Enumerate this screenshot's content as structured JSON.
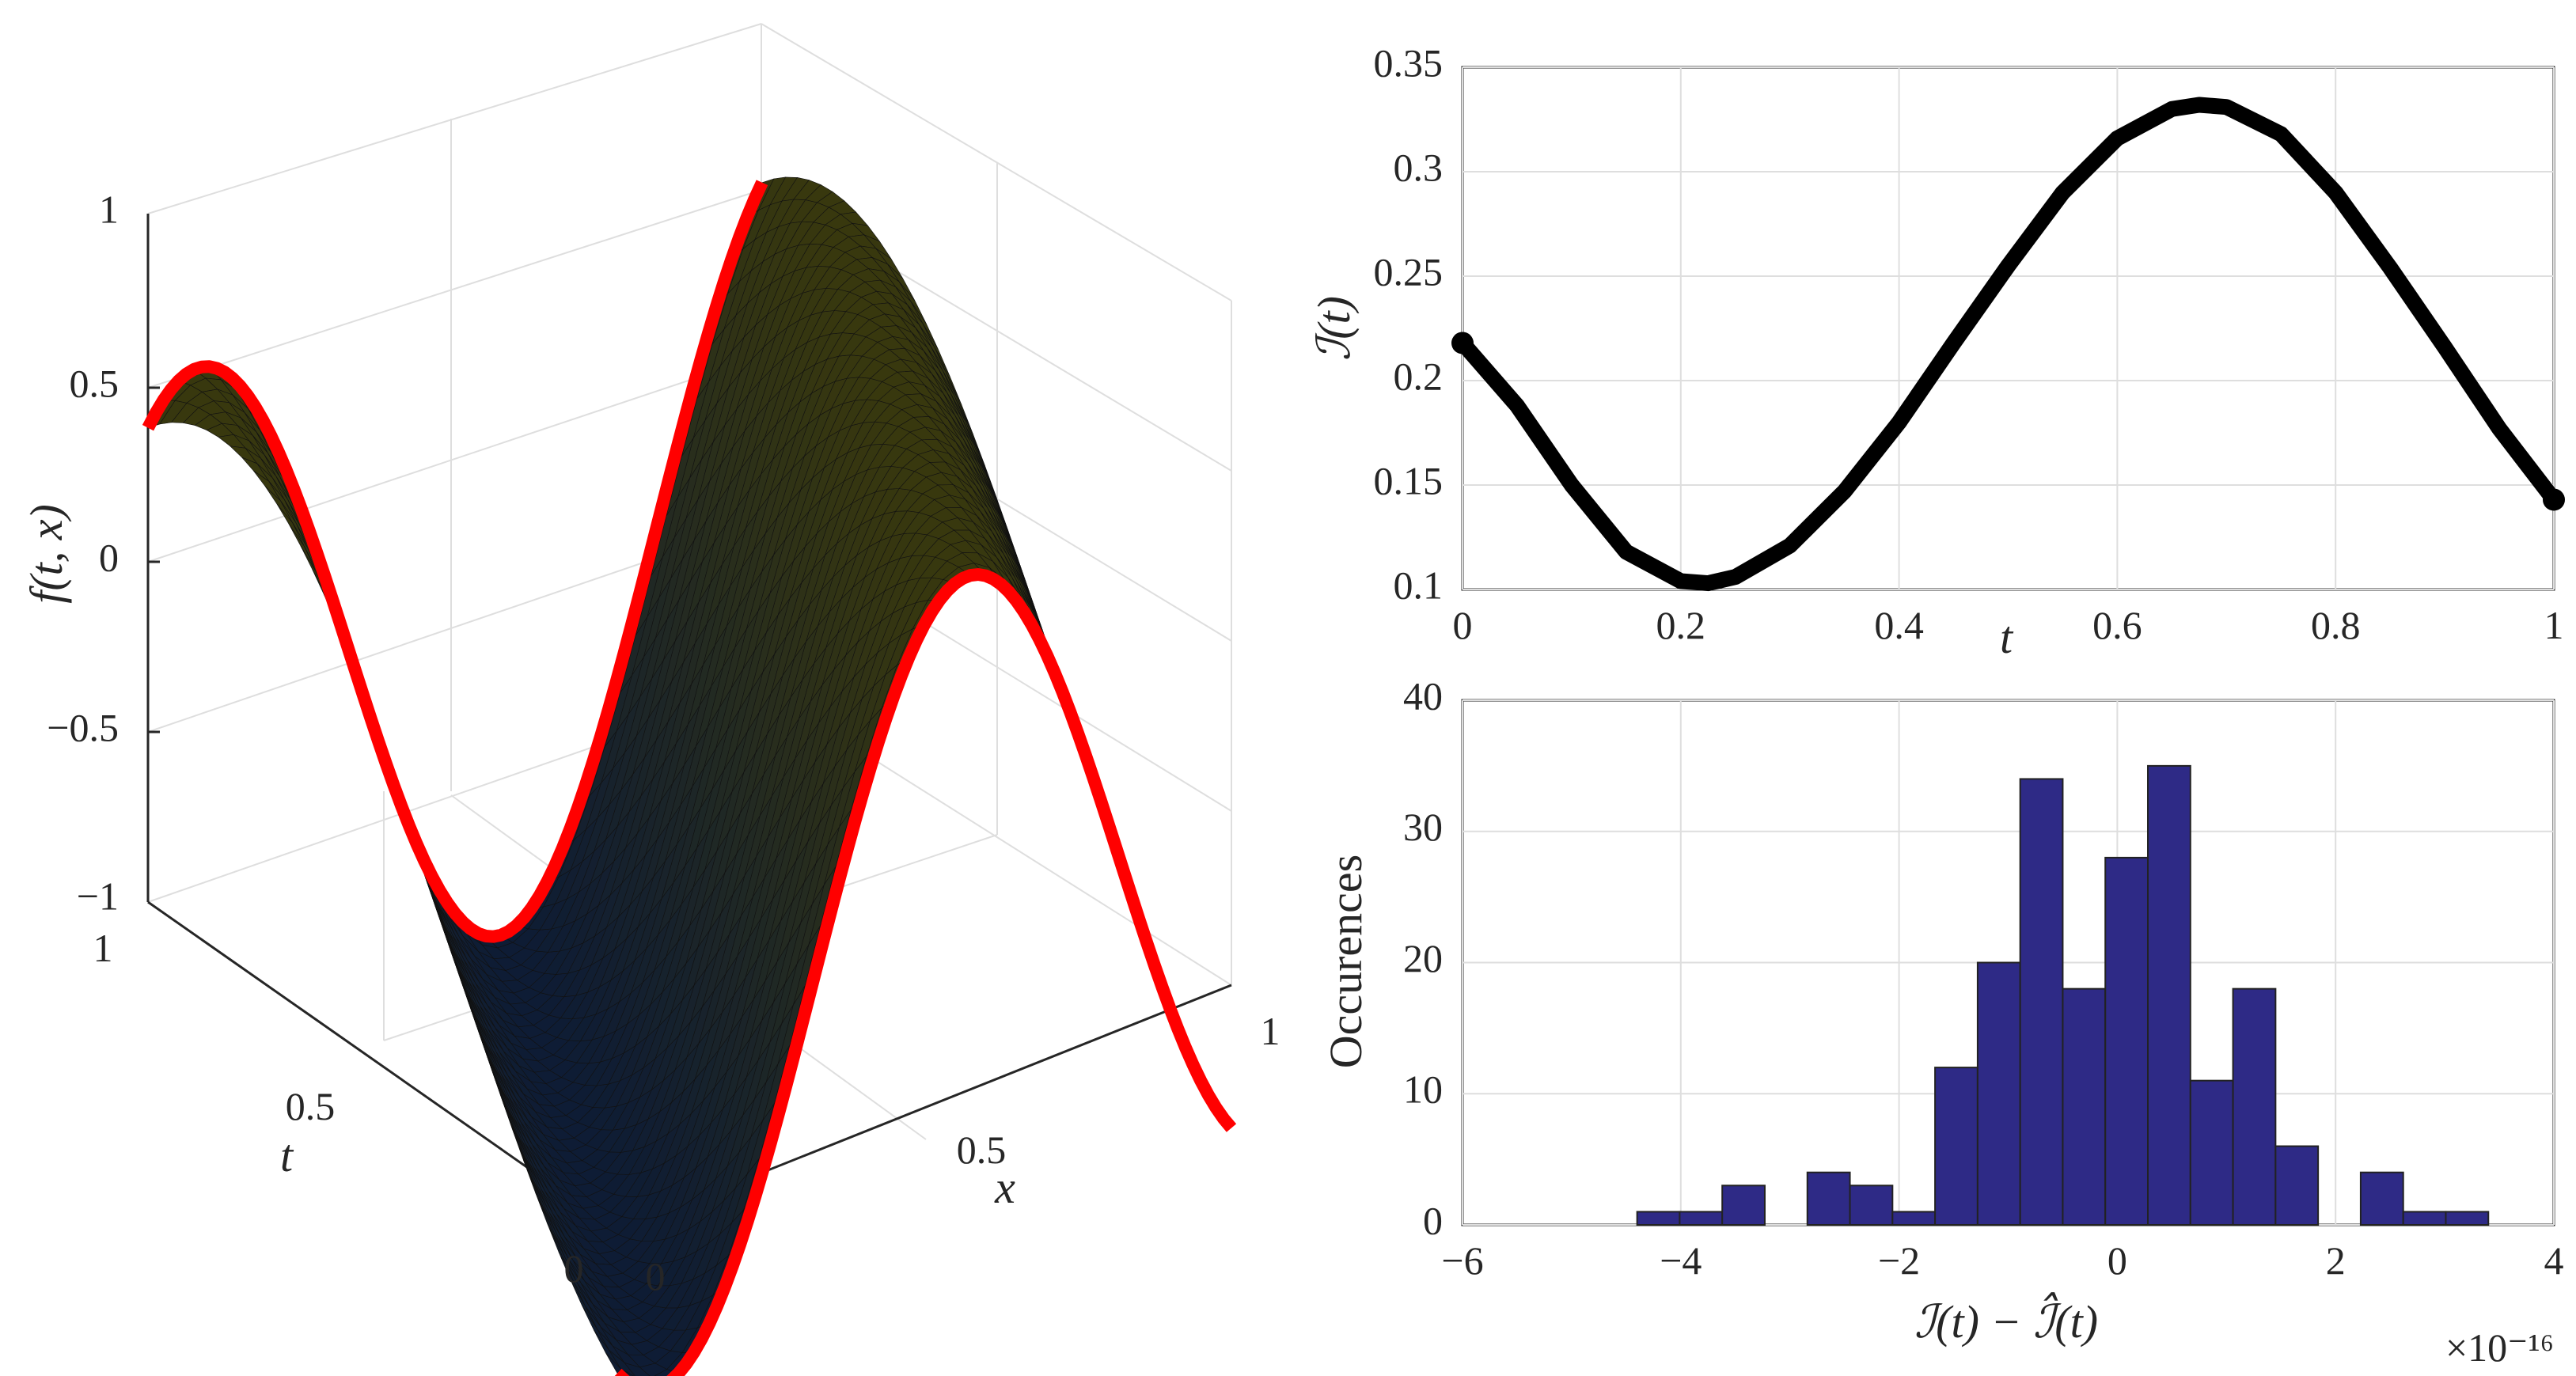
{
  "colors": {
    "edge": "#ff0000",
    "curve": "#000000",
    "bar_fill": "#2e2a86",
    "bar_edge": "#222222",
    "axis": "#262626",
    "grid": "#dedede"
  },
  "chart_data": [
    {
      "type": "surface",
      "title": "",
      "xlabel": "x",
      "ylabel": "t",
      "zlabel": "f(t, x)",
      "x_ticks": [
        "0",
        "0.5",
        "1"
      ],
      "t_ticks": [
        "0",
        "0.5",
        "1"
      ],
      "z_ticks": [
        "1",
        "0.5",
        "0",
        "−0.5",
        "−1"
      ],
      "xlim": [
        0,
        1
      ],
      "ylim": [
        0,
        1
      ],
      "zlim": [
        -1,
        1
      ],
      "grid": true,
      "colormap": "parula",
      "edge_curves": "t = 0 and t = 1 outlined in red"
    },
    {
      "type": "line",
      "title": "",
      "xlabel": "t",
      "ylabel": "ℐ(t)",
      "x_ticks": [
        "0",
        "0.2",
        "0.4",
        "0.6",
        "0.8",
        "1"
      ],
      "y_ticks": [
        "0.35",
        "0.3",
        "0.25",
        "0.2",
        "0.15",
        "0.1"
      ],
      "xlim": [
        0,
        1
      ],
      "ylim": [
        0.1,
        0.35
      ],
      "grid": true,
      "x": [
        0,
        0.05,
        0.1,
        0.15,
        0.2,
        0.225,
        0.25,
        0.3,
        0.35,
        0.4,
        0.45,
        0.5,
        0.55,
        0.6,
        0.65,
        0.675,
        0.7,
        0.75,
        0.8,
        0.85,
        0.9,
        0.95,
        1.0
      ],
      "y": [
        0.218,
        0.188,
        0.15,
        0.118,
        0.104,
        0.103,
        0.106,
        0.121,
        0.147,
        0.18,
        0.218,
        0.255,
        0.29,
        0.316,
        0.33,
        0.332,
        0.331,
        0.318,
        0.29,
        0.254,
        0.216,
        0.177,
        0.143
      ]
    },
    {
      "type": "bar",
      "title": "",
      "xlabel": "ℐ(t) − ℐ̂(t)",
      "ylabel": "Occurences",
      "x_ticks": [
        "−6",
        "−4",
        "−2",
        "0",
        "2",
        "4"
      ],
      "y_ticks": [
        "40",
        "30",
        "20",
        "10",
        "0"
      ],
      "x_multiplier": "×10⁻¹⁶",
      "xlim": [
        -6,
        4
      ],
      "ylim": [
        0,
        40
      ],
      "grid": true,
      "bin_edges_e16": [
        -4.4,
        -4.01,
        -3.62,
        -3.23,
        -2.84,
        -2.45,
        -2.06,
        -1.67,
        -1.28,
        -0.89,
        -0.5,
        -0.11,
        0.28,
        0.67,
        1.06,
        1.45,
        1.84,
        2.23,
        2.62,
        3.01,
        3.4
      ],
      "values": [
        1,
        1,
        3,
        0,
        4,
        3,
        1,
        12,
        20,
        34,
        18,
        28,
        35,
        11,
        18,
        6,
        0,
        4,
        1,
        1
      ]
    }
  ]
}
